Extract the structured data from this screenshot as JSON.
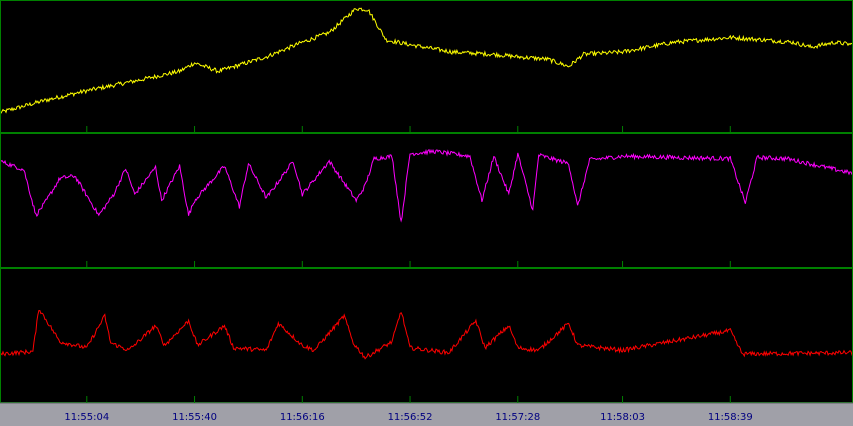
{
  "chart_data": [
    {
      "type": "line",
      "panel": "top",
      "series": [
        {
          "color": "#ffff00",
          "x": [
            "11:54:35",
            "11:54:50",
            "11:55:04",
            "11:55:20",
            "11:55:35",
            "11:55:40",
            "11:55:48",
            "11:56:04",
            "11:56:16",
            "11:56:25",
            "11:56:34",
            "11:56:38",
            "11:56:44",
            "11:56:52",
            "11:57:06",
            "11:57:20",
            "11:57:28",
            "11:57:38",
            "11:57:45",
            "11:57:50",
            "11:58:03",
            "11:58:20",
            "11:58:39",
            "11:58:50",
            "11:59:00",
            "11:59:06",
            "11:59:14",
            "11:59:20"
          ],
          "values": [
            0.12,
            0.22,
            0.3,
            0.38,
            0.46,
            0.53,
            0.46,
            0.58,
            0.7,
            0.78,
            0.98,
            0.97,
            0.72,
            0.68,
            0.62,
            0.6,
            0.58,
            0.56,
            0.5,
            0.6,
            0.62,
            0.7,
            0.74,
            0.72,
            0.7,
            0.66,
            0.7,
            0.68
          ]
        }
      ],
      "ylim": [
        0,
        1
      ]
    },
    {
      "type": "line",
      "panel": "middle",
      "series": [
        {
          "color": "#ff00ff",
          "x": [
            "11:54:35",
            "11:54:43",
            "11:54:47",
            "11:54:50",
            "11:54:55",
            "11:55:00",
            "11:55:08",
            "11:55:13",
            "11:55:17",
            "11:55:20",
            "11:55:27",
            "11:55:29",
            "11:55:35",
            "11:55:38",
            "11:55:40",
            "11:55:50",
            "11:55:55",
            "11:55:58",
            "11:56:04",
            "11:56:13",
            "11:56:16",
            "11:56:25",
            "11:56:34",
            "11:56:37",
            "11:56:40",
            "11:56:46",
            "11:56:49",
            "11:56:52",
            "11:57:00",
            "11:57:12",
            "11:57:16",
            "11:57:20",
            "11:57:25",
            "11:57:28",
            "11:57:33",
            "11:57:35",
            "11:57:45",
            "11:57:48",
            "11:57:52",
            "11:58:03",
            "11:58:39",
            "11:58:44",
            "11:58:48",
            "11:58:58",
            "11:59:20"
          ],
          "values": [
            0.82,
            0.75,
            0.38,
            0.48,
            0.68,
            0.7,
            0.38,
            0.55,
            0.76,
            0.55,
            0.77,
            0.5,
            0.78,
            0.38,
            0.5,
            0.78,
            0.45,
            0.8,
            0.52,
            0.82,
            0.55,
            0.82,
            0.5,
            0.62,
            0.84,
            0.86,
            0.32,
            0.88,
            0.9,
            0.86,
            0.5,
            0.86,
            0.55,
            0.88,
            0.42,
            0.87,
            0.8,
            0.45,
            0.83,
            0.86,
            0.84,
            0.48,
            0.85,
            0.84,
            0.72
          ]
        }
      ],
      "ylim": [
        0,
        1
      ]
    },
    {
      "type": "line",
      "panel": "bottom",
      "series": [
        {
          "color": "#ff0000",
          "x": [
            "11:54:35",
            "11:54:46",
            "11:54:48",
            "11:54:55",
            "11:55:04",
            "11:55:10",
            "11:55:12",
            "11:55:18",
            "11:55:27",
            "11:55:30",
            "11:55:38",
            "11:55:41",
            "11:55:50",
            "11:55:53",
            "11:56:04",
            "11:56:08",
            "11:56:16",
            "11:56:20",
            "11:56:30",
            "11:56:33",
            "11:56:37",
            "11:56:46",
            "11:56:49",
            "11:56:52",
            "11:57:05",
            "11:57:14",
            "11:57:17",
            "11:57:25",
            "11:57:28",
            "11:57:35",
            "11:57:45",
            "11:57:48",
            "11:58:03",
            "11:58:39",
            "11:58:43",
            "11:59:20"
          ],
          "values": [
            0.35,
            0.37,
            0.72,
            0.45,
            0.4,
            0.66,
            0.44,
            0.38,
            0.58,
            0.42,
            0.62,
            0.42,
            0.58,
            0.4,
            0.38,
            0.6,
            0.42,
            0.38,
            0.66,
            0.44,
            0.32,
            0.45,
            0.7,
            0.4,
            0.36,
            0.62,
            0.4,
            0.58,
            0.4,
            0.38,
            0.6,
            0.42,
            0.38,
            0.54,
            0.35,
            0.36
          ]
        }
      ],
      "ylim": [
        0,
        1
      ]
    }
  ],
  "time_axis": {
    "range": [
      "11:54:35",
      "11:59:20"
    ],
    "tick_labels": [
      "11:55:04",
      "11:55:40",
      "11:56:16",
      "11:56:52",
      "11:57:28",
      "11:58:03",
      "11:58:39"
    ]
  },
  "colors": {
    "background": "#000000",
    "frame": "#008000",
    "axis_background": "#a0a0a8",
    "tick_text": "#000080"
  }
}
